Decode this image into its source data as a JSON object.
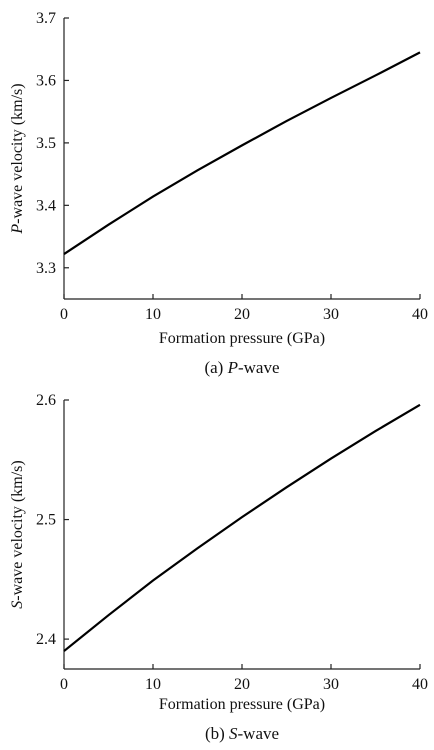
{
  "chart_data": [
    {
      "type": "line",
      "caption_prefix": "(a) ",
      "caption_italic": "P",
      "caption_suffix": "-wave",
      "xlabel": "Formation pressure (GPa)",
      "ylabel_italic": "P",
      "ylabel_rest": "-wave velocity (km/s)",
      "xlim": [
        0,
        40
      ],
      "ylim": [
        3.25,
        3.7
      ],
      "xticks": [
        0,
        10,
        20,
        30,
        40
      ],
      "yticks": [
        3.3,
        3.4,
        3.5,
        3.6,
        3.7
      ],
      "ytick_labels": [
        "3.3",
        "3.4",
        "3.5",
        "3.6",
        "3.7"
      ],
      "grid": false,
      "series": [
        {
          "x": [
            0,
            5,
            10,
            15,
            20,
            25,
            30,
            35,
            40
          ],
          "values": [
            3.322,
            3.369,
            3.414,
            3.456,
            3.496,
            3.535,
            3.572,
            3.608,
            3.645
          ]
        }
      ]
    },
    {
      "type": "line",
      "caption_prefix": "(b) ",
      "caption_italic": "S",
      "caption_suffix": "-wave",
      "xlabel": "Formation pressure (GPa)",
      "ylabel_italic": "S",
      "ylabel_rest": "-wave velocity (km/s)",
      "xlim": [
        0,
        40
      ],
      "ylim": [
        2.375,
        2.6
      ],
      "xticks": [
        0,
        10,
        20,
        30,
        40
      ],
      "yticks": [
        2.4,
        2.5,
        2.6
      ],
      "ytick_labels": [
        "2.4",
        "2.5",
        "2.6"
      ],
      "grid": false,
      "series": [
        {
          "x": [
            0,
            5,
            10,
            15,
            20,
            25,
            30,
            35,
            40
          ],
          "values": [
            2.39,
            2.42,
            2.449,
            2.476,
            2.502,
            2.527,
            2.551,
            2.574,
            2.596
          ]
        }
      ]
    }
  ]
}
